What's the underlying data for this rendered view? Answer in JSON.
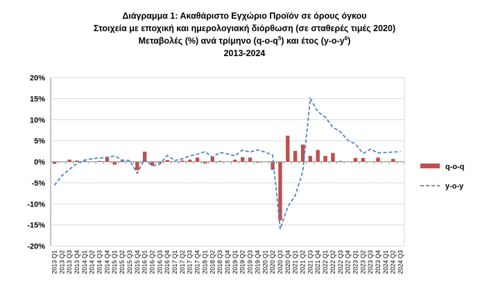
{
  "titles": {
    "line1": "Διάγραμμα 1: Ακαθάριστο Εγχώριο Προϊόν σε όρους όγκου",
    "line2": "Στοιχεία με εποχική και ημερολογιακή διόρθωση (σε σταθερές τιμές 2020)",
    "line3_pre": "Μεταβολές (%) ανά τρίμηνο (q-o-q",
    "line3_sup1": "5",
    "line3_mid": ") και έτος (y-o-y",
    "line3_sup2": "6",
    "line3_post": ")",
    "line4": "2013-2024"
  },
  "chart_data": {
    "type": "bar+line",
    "title": "Διάγραμμα 1: Ακαθάριστο Εγχώριο Προϊόν σε όρους όγκου",
    "xlabel": "",
    "ylabel": "",
    "ylim": [
      -20,
      20
    ],
    "yticks": [
      "20%",
      "15%",
      "10%",
      "5%",
      "0%",
      "-5%",
      "-10%",
      "-15%",
      "-20%"
    ],
    "grid": true,
    "legend_position": "right",
    "colors": {
      "bar": "#c0504d",
      "line": "#4f81bd",
      "grid": "#d9d9d9"
    },
    "categories": [
      "2013 Q1",
      "2013 Q2",
      "2013 Q3",
      "2013 Q4",
      "2014 Q1",
      "2014 Q2",
      "2014 Q3",
      "2014 Q4",
      "2015 Q1",
      "2015 Q2",
      "2015 Q3",
      "2015 Q4",
      "2016 Q1",
      "2016 Q2",
      "2016 Q3",
      "2016 Q4",
      "2017 Q1",
      "2017 Q2",
      "2017 Q3",
      "2017 Q4",
      "2018 Q1",
      "2018 Q2",
      "2018 Q3",
      "2018 Q4",
      "2019 Q1",
      "2019 Q2",
      "2019 Q3",
      "2019 Q4",
      "2020 Q1",
      "2020 Q2",
      "2020 Q3",
      "2020 Q4",
      "2021 Q1",
      "2021 Q2",
      "2021 Q3",
      "2021 Q4",
      "2022 Q1",
      "2022 Q2",
      "2022 Q3",
      "2022 Q4",
      "2023 Q1",
      "2023 Q2",
      "2023 Q3",
      "2023 Q4",
      "2024 Q1",
      "2024 Q2",
      "2024 Q3"
    ],
    "series": [
      {
        "name": "q-o-q",
        "kind": "bar",
        "values": [
          -0.5,
          -0.1,
          0.5,
          0.3,
          0.2,
          0.1,
          0.2,
          1.2,
          -0.7,
          0.3,
          0.1,
          -2.0,
          2.4,
          -0.9,
          -0.3,
          0.4,
          0.1,
          0.3,
          0.5,
          1.0,
          -0.4,
          1.2,
          0.2,
          0.1,
          0.5,
          1.1,
          1.0,
          -0.2,
          -0.1,
          -1.9,
          -13.9,
          6.2,
          2.6,
          4.1,
          1.4,
          2.8,
          1.4,
          2.1,
          0.2,
          0.1,
          0.9,
          0.9,
          0.1,
          1.0,
          0.1,
          0.7,
          0.1
        ]
      },
      {
        "name": "y-o-y",
        "kind": "line",
        "values": [
          -5.6,
          -3.3,
          -1.8,
          -0.4,
          0.4,
          0.7,
          0.9,
          1.0,
          1.4,
          0.4,
          0.3,
          -2.7,
          0.6,
          -1.0,
          -0.6,
          1.5,
          0.3,
          0.7,
          1.4,
          1.8,
          2.4,
          1.1,
          2.2,
          1.9,
          1.4,
          2.8,
          2.3,
          2.8,
          2.3,
          1.6,
          -16.0,
          -10.7,
          -8.0,
          -2.3,
          15.0,
          11.9,
          10.6,
          8.2,
          7.1,
          5.1,
          4.2,
          2.0,
          3.0,
          2.1,
          2.2,
          2.3,
          2.4
        ]
      }
    ]
  }
}
